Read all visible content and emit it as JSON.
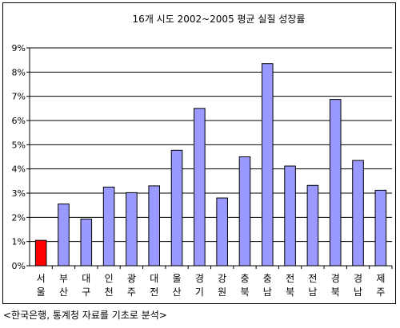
{
  "chart_data": {
    "type": "bar",
    "title": "16개 시도 2002~2005 평균 실질 성장률",
    "categories": [
      [
        "서",
        "울"
      ],
      [
        "부",
        "산"
      ],
      [
        "대",
        "구"
      ],
      [
        "인",
        "천"
      ],
      [
        "광",
        "주"
      ],
      [
        "대",
        "전"
      ],
      [
        "울",
        "산"
      ],
      [
        "경",
        "기"
      ],
      [
        "강",
        "원"
      ],
      [
        "충",
        "북"
      ],
      [
        "충",
        "남"
      ],
      [
        "전",
        "북"
      ],
      [
        "전",
        "남"
      ],
      [
        "경",
        "북"
      ],
      [
        "경",
        "남"
      ],
      [
        "제",
        "주"
      ]
    ],
    "values": [
      1.05,
      2.55,
      1.93,
      3.25,
      3.02,
      3.3,
      4.77,
      6.5,
      2.8,
      4.5,
      8.35,
      4.12,
      3.32,
      6.87,
      4.35,
      3.12
    ],
    "ylim": [
      0,
      9
    ],
    "yticks": [
      "0%",
      "1%",
      "2%",
      "3%",
      "4%",
      "5%",
      "6%",
      "7%",
      "8%",
      "9%"
    ],
    "grid": true,
    "colors": {
      "default_bar": "#9999ff",
      "highlight_bar": "#ff0000",
      "highlight_index": 0
    }
  },
  "source_note": "<한국은행, 통계청 자료를 기초로 분석>"
}
